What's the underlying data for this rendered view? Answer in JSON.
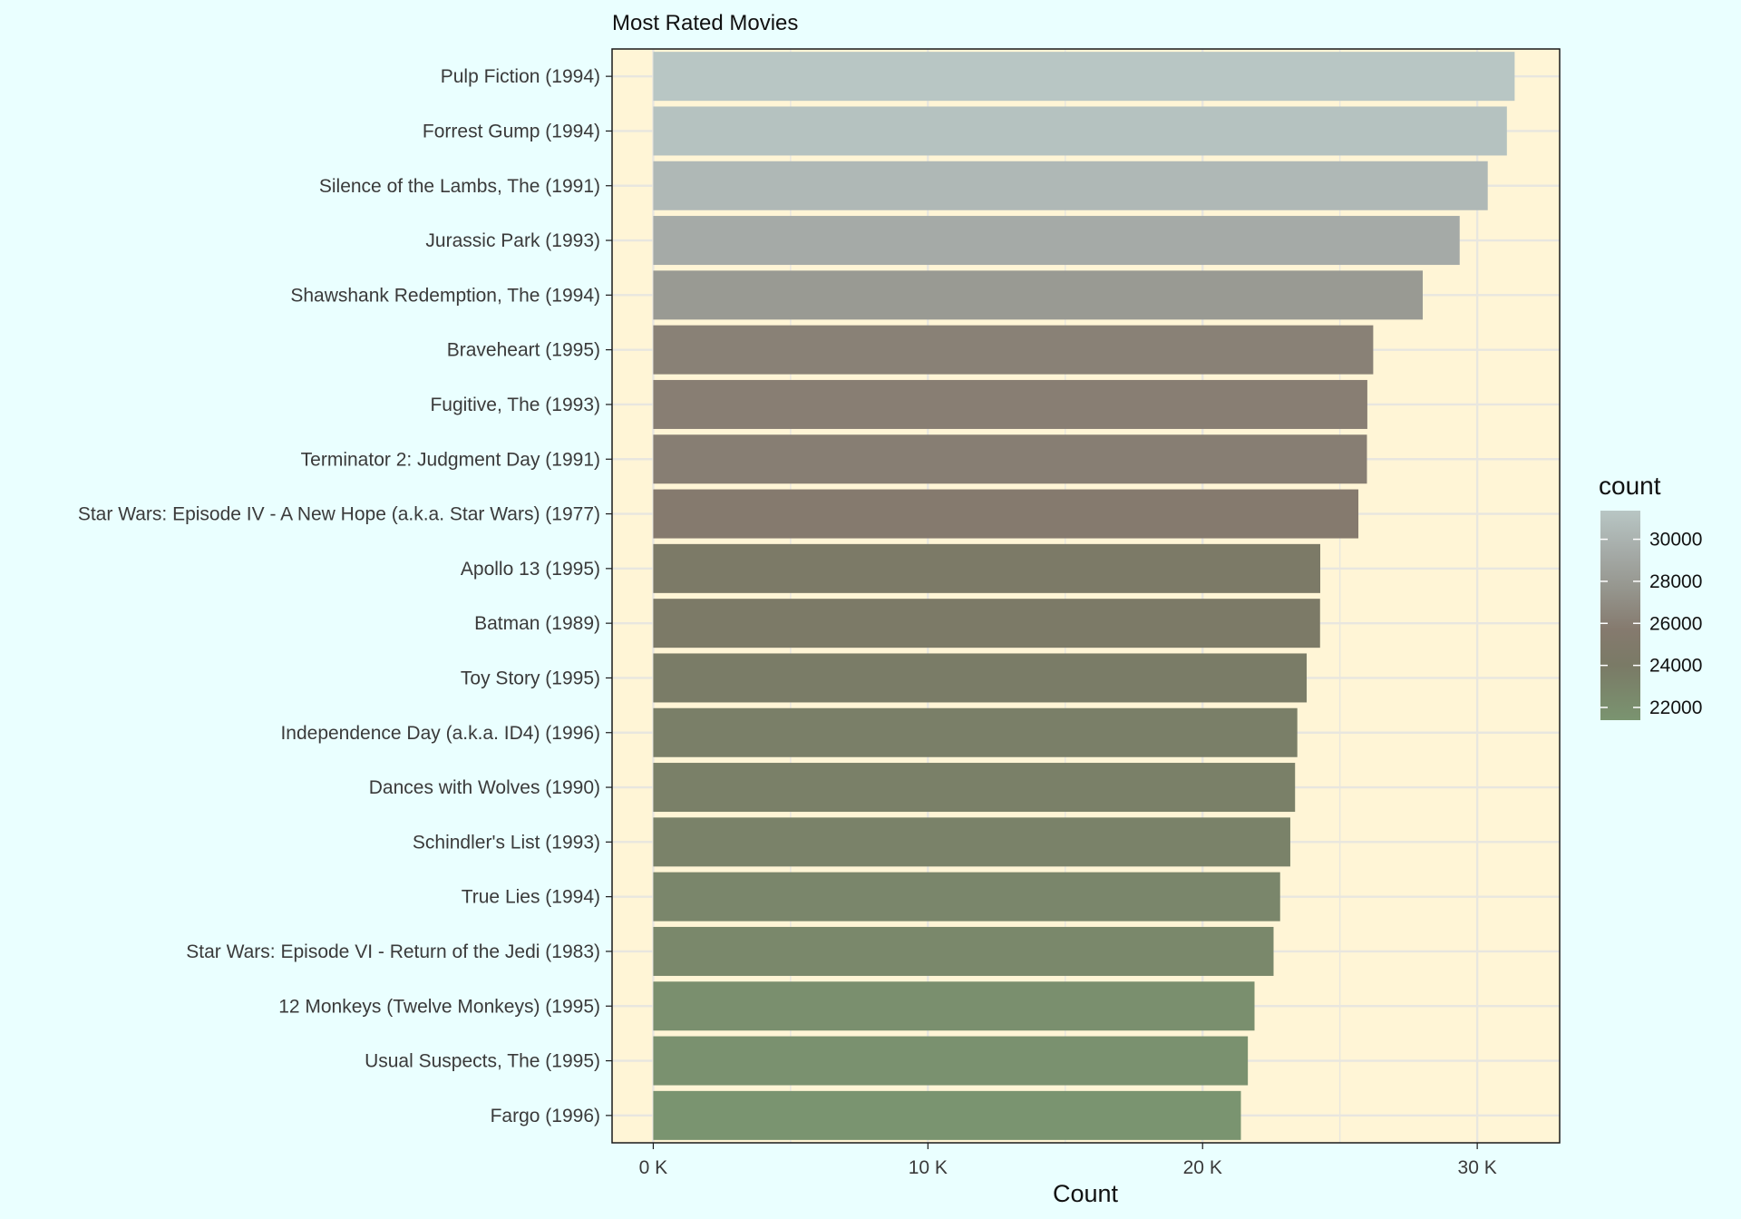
{
  "chart_data": {
    "type": "bar",
    "orientation": "horizontal",
    "title": "Most Rated Movies",
    "xlabel": "Count",
    "ylabel": "",
    "xlim": [
      -1500,
      33000
    ],
    "x_ticks": [
      0,
      10000,
      20000,
      30000
    ],
    "x_tick_labels": [
      "0 K",
      "10 K",
      "20 K",
      "30 K"
    ],
    "categories": [
      "Pulp Fiction (1994)",
      "Forrest Gump (1994)",
      "Silence of the Lambs, The (1991)",
      "Jurassic Park (1993)",
      "Shawshank Redemption, The (1994)",
      "Braveheart (1995)",
      "Fugitive, The (1993)",
      "Terminator 2: Judgment Day (1991)",
      "Star Wars: Episode IV - A New Hope (a.k.a. Star Wars) (1977)",
      "Apollo 13 (1995)",
      "Batman (1989)",
      "Toy Story (1995)",
      "Independence Day (a.k.a. ID4) (1996)",
      "Dances with Wolves (1990)",
      "Schindler's List (1993)",
      "True Lies (1994)",
      "Star Wars: Episode VI - Return of the Jedi (1983)",
      "12 Monkeys (Twelve Monkeys) (1995)",
      "Usual Suspects, The (1995)",
      "Fargo (1996)"
    ],
    "values": [
      31362,
      31079,
      30382,
      29360,
      28015,
      26212,
      25998,
      25984,
      25672,
      24284,
      24277,
      23790,
      23449,
      23367,
      23193,
      22823,
      22584,
      21891,
      21648,
      21395
    ],
    "grid": true,
    "panel_background": "#fff5d6",
    "page_background": "#eaffff",
    "legend": {
      "title": "count",
      "position": "right",
      "labels": [
        "30000",
        "28000",
        "26000",
        "24000",
        "22000"
      ],
      "values": [
        30000,
        28000,
        26000,
        24000,
        22000
      ],
      "range": [
        21395,
        31362
      ],
      "colors": {
        "21395": "#7a9470",
        "24000": "#7a7a66",
        "25700": "#857a6e",
        "27600": "#95958d",
        "29500": "#a6aca9",
        "31362": "#b8c6c4"
      }
    }
  }
}
